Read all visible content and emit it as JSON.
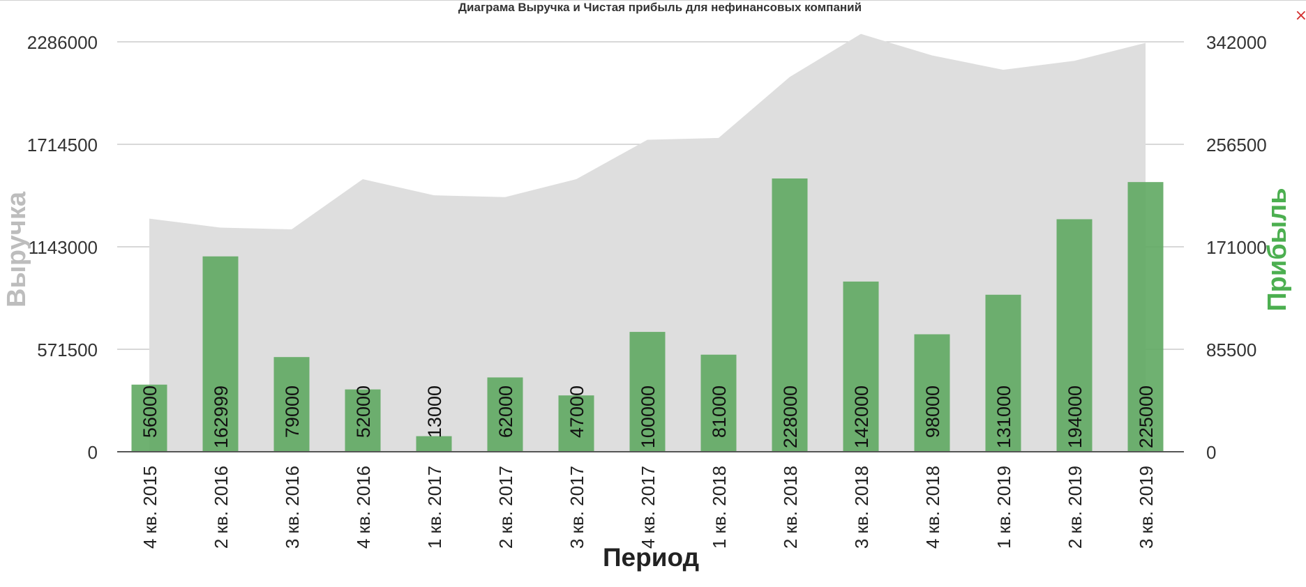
{
  "window": {
    "close_label": "×"
  },
  "colors": {
    "revenue_area": "#dedede",
    "profit_bar": "#5fa862",
    "revenue_axis_title": "#bdbdbd",
    "profit_axis_title": "#4caf50",
    "grid": "#cccccc"
  },
  "chart_data": {
    "type": "bar",
    "title": "Диаграма Выручка и Чистая прибыль для нефинансовых компаний",
    "xlabel": "Период",
    "ylabel_left": "Выручка",
    "ylabel_right": "Прибыль",
    "left_ticks": [
      "0",
      "571500",
      "1143000",
      "1714500",
      "2286000"
    ],
    "right_ticks": [
      "0",
      "85500",
      "171000",
      "256500",
      "342000"
    ],
    "ylim_left": [
      0,
      2286000
    ],
    "ylim_right": [
      0,
      342000
    ],
    "grid": true,
    "categories": [
      "4 кв. 2015",
      "2 кв. 2016",
      "3 кв. 2016",
      "4 кв. 2016",
      "1 кв. 2017",
      "2 кв. 2017",
      "3 кв. 2017",
      "4 кв. 2017",
      "1 кв. 2018",
      "2 кв. 2018",
      "3 кв. 2018",
      "4 кв. 2018",
      "1 кв. 2019",
      "2 кв. 2019",
      "3 кв. 2019"
    ],
    "series": [
      {
        "role": "revenue_area",
        "axis": "left",
        "values": [
          1300000,
          1250000,
          1240000,
          1520000,
          1430000,
          1420000,
          1520000,
          1740000,
          1750000,
          2090000,
          2330000,
          2210000,
          2130000,
          2180000,
          2280000
        ]
      },
      {
        "role": "profit_bars",
        "axis": "right",
        "values": [
          56000,
          162999,
          79000,
          52000,
          13000,
          62000,
          47000,
          100000,
          81000,
          228000,
          142000,
          98000,
          131000,
          194000,
          225000
        ]
      }
    ]
  }
}
